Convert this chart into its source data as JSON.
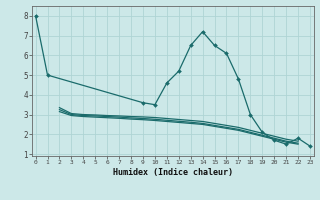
{
  "xlabel": "Humidex (Indice chaleur)",
  "x_values": [
    0,
    1,
    2,
    3,
    4,
    5,
    6,
    7,
    8,
    9,
    10,
    11,
    12,
    13,
    14,
    15,
    16,
    17,
    18,
    19,
    20,
    21,
    22,
    23
  ],
  "line1_x": [
    0,
    1,
    9,
    10,
    11,
    12,
    13,
    14,
    15,
    16,
    17,
    18,
    19,
    20,
    21,
    22,
    23
  ],
  "line1_y": [
    8.0,
    5.0,
    3.6,
    3.5,
    4.6,
    5.2,
    6.5,
    7.2,
    6.5,
    6.1,
    4.8,
    3.0,
    2.1,
    1.7,
    1.5,
    1.8,
    1.4
  ],
  "line2_x": [
    2,
    3,
    4,
    5,
    6,
    7,
    8,
    9,
    10,
    11,
    12,
    13,
    14,
    15,
    16,
    17,
    18,
    19,
    20,
    21,
    22
  ],
  "line2_y": [
    3.35,
    3.05,
    3.0,
    2.98,
    2.95,
    2.93,
    2.9,
    2.88,
    2.85,
    2.8,
    2.75,
    2.7,
    2.65,
    2.55,
    2.45,
    2.35,
    2.2,
    2.05,
    1.9,
    1.75,
    1.65
  ],
  "line3_x": [
    2,
    3,
    4,
    5,
    6,
    7,
    8,
    9,
    10,
    11,
    12,
    13,
    14,
    15,
    16,
    17,
    18,
    19,
    20,
    21,
    22
  ],
  "line3_y": [
    3.25,
    3.0,
    2.95,
    2.93,
    2.9,
    2.87,
    2.83,
    2.8,
    2.76,
    2.71,
    2.66,
    2.61,
    2.55,
    2.45,
    2.35,
    2.25,
    2.1,
    1.95,
    1.8,
    1.65,
    1.55
  ],
  "line4_x": [
    2,
    3,
    4,
    5,
    6,
    7,
    8,
    9,
    10,
    11,
    12,
    13,
    14,
    15,
    16,
    17,
    18,
    19,
    20,
    21,
    22
  ],
  "line4_y": [
    3.15,
    2.95,
    2.9,
    2.87,
    2.84,
    2.81,
    2.77,
    2.74,
    2.7,
    2.65,
    2.6,
    2.55,
    2.5,
    2.4,
    2.3,
    2.2,
    2.05,
    1.9,
    1.75,
    1.6,
    1.5
  ],
  "color": "#1a6b6b",
  "bg_color": "#cce8e8",
  "grid_color": "#afd4d4",
  "ylim": [
    0.9,
    8.5
  ],
  "yticks": [
    1,
    2,
    3,
    4,
    5,
    6,
    7,
    8
  ],
  "xlim": [
    -0.3,
    23.3
  ]
}
